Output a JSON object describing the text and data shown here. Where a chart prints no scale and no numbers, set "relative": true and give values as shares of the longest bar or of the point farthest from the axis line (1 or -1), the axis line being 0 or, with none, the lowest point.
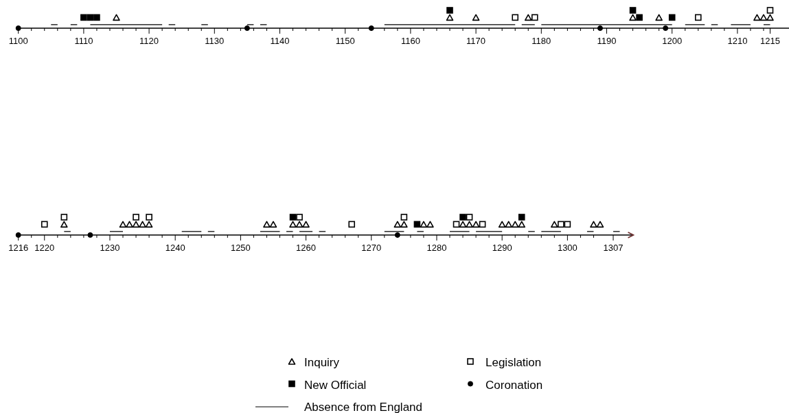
{
  "chart_data": [
    {
      "type": "scatter",
      "relative": true,
      "tick_labels": "x",
      "xlim": [
        1100,
        1218
      ],
      "xticks": [
        1100,
        {
          "value": 1102,
          "label": null
        },
        {
          "value": 1104,
          "label": null
        },
        {
          "value": 1106,
          "label": null
        },
        {
          "value": 1108,
          "label": null
        },
        1110,
        {
          "value": 1112,
          "label": null
        },
        {
          "value": 1114,
          "label": null
        },
        {
          "value": 1116,
          "label": null
        },
        {
          "value": 1118,
          "label": null
        },
        1120,
        {
          "value": 1122,
          "label": null
        },
        {
          "value": 1124,
          "label": null
        },
        {
          "value": 1126,
          "label": null
        },
        {
          "value": 1128,
          "label": null
        },
        1130,
        {
          "value": 1132,
          "label": null
        },
        {
          "value": 1134,
          "label": null
        },
        {
          "value": 1136,
          "label": null
        },
        {
          "value": 1138,
          "label": null
        },
        1140,
        {
          "value": 1142,
          "label": null
        },
        {
          "value": 1144,
          "label": null
        },
        {
          "value": 1146,
          "label": null
        },
        {
          "value": 1148,
          "label": null
        },
        1150,
        {
          "value": 1152,
          "label": null
        },
        {
          "value": 1154,
          "label": null
        },
        {
          "value": 1156,
          "label": null
        },
        {
          "value": 1158,
          "label": null
        },
        1160,
        {
          "value": 1162,
          "label": null
        },
        {
          "value": 1164,
          "label": null
        },
        {
          "value": 1166,
          "label": null
        },
        {
          "value": 1168,
          "label": null
        },
        1170,
        {
          "value": 1172,
          "label": null
        },
        {
          "value": 1174,
          "label": null
        },
        {
          "value": 1176,
          "label": null
        },
        {
          "value": 1178,
          "label": null
        },
        1180,
        {
          "value": 1182,
          "label": null
        },
        {
          "value": 1184,
          "label": null
        },
        {
          "value": 1186,
          "label": null
        },
        {
          "value": 1188,
          "label": null
        },
        1190,
        {
          "value": 1192,
          "label": null
        },
        {
          "value": 1194,
          "label": null
        },
        {
          "value": 1196,
          "label": null
        },
        {
          "value": 1198,
          "label": null
        },
        1200,
        {
          "value": 1202,
          "label": null
        },
        {
          "value": 1204,
          "label": null
        },
        {
          "value": 1206,
          "label": null
        },
        {
          "value": 1208,
          "label": null
        },
        1210,
        {
          "value": 1212,
          "label": null
        },
        {
          "value": 1214,
          "label": null
        },
        1215
      ],
      "series": [
        {
          "marker": "triangle",
          "color": "#000000",
          "x": [
            1115,
            1166,
            1170,
            1178,
            1194,
            1198,
            1213,
            1214,
            1215
          ],
          "values": [
            0.6,
            0.6,
            0.6,
            0.6,
            0.6,
            0.6,
            0.6,
            0.6,
            0.6
          ]
        },
        {
          "marker": "square",
          "color": "#000000",
          "x": [
            1176,
            1179,
            1204,
            1215
          ],
          "values": [
            0.6,
            0.6,
            0.6,
            1
          ]
        },
        {
          "marker": "square",
          "color": "#000000",
          "x": [
            1110,
            1111,
            1112,
            1166,
            1194,
            1195,
            1200
          ],
          "values": [
            0.6,
            0.6,
            0.6,
            1,
            1,
            0.6,
            0.6
          ]
        },
        {
          "marker": "circle",
          "color": "#000000",
          "x": [
            1100,
            1135,
            1154,
            1189,
            1199
          ],
          "values": [
            0,
            0,
            0,
            0,
            0
          ]
        },
        {
          "type": "line",
          "marker": "none",
          "color": "#000000",
          "x": [
            1105,
            1106,
            null,
            1108,
            1109,
            null,
            1111,
            1122,
            null,
            1123,
            1124,
            null,
            1128,
            1129,
            null,
            1135,
            1136,
            null,
            1137,
            1138,
            null,
            1156,
            1176,
            null,
            1177,
            1179,
            null,
            1180,
            1200,
            null,
            1202,
            1205,
            null,
            1206,
            1207,
            null,
            1209,
            1212,
            null,
            1214,
            1215
          ],
          "values": [
            0.2,
            0.2,
            null,
            0.2,
            0.2,
            null,
            0.2,
            0.2,
            null,
            0.2,
            0.2,
            null,
            0.2,
            0.2,
            null,
            0.2,
            0.2,
            null,
            0.2,
            0.2,
            null,
            0.2,
            0.2,
            null,
            0.2,
            0.2,
            null,
            0.2,
            0.2,
            null,
            0.2,
            0.2,
            null,
            0.2,
            0.2,
            null,
            0.2,
            0.2,
            null,
            0.2,
            0.2
          ]
        }
      ]
    },
    {
      "type": "scatter",
      "relative": true,
      "tick_labels": "x",
      "legend": "bottom",
      "xlim": [
        1216,
        1310
      ],
      "xticks": [
        1216,
        {
          "value": 1218,
          "label": null
        },
        1220,
        {
          "value": 1222,
          "label": null
        },
        {
          "value": 1224,
          "label": null
        },
        {
          "value": 1226,
          "label": null
        },
        {
          "value": 1228,
          "label": null
        },
        1230,
        {
          "value": 1232,
          "label": null
        },
        {
          "value": 1234,
          "label": null
        },
        {
          "value": 1236,
          "label": null
        },
        {
          "value": 1238,
          "label": null
        },
        1240,
        {
          "value": 1242,
          "label": null
        },
        {
          "value": 1244,
          "label": null
        },
        {
          "value": 1246,
          "label": null
        },
        {
          "value": 1248,
          "label": null
        },
        1250,
        {
          "value": 1252,
          "label": null
        },
        {
          "value": 1254,
          "label": null
        },
        {
          "value": 1256,
          "label": null
        },
        {
          "value": 1258,
          "label": null
        },
        1260,
        {
          "value": 1262,
          "label": null
        },
        {
          "value": 1264,
          "label": null
        },
        {
          "value": 1266,
          "label": null
        },
        {
          "value": 1268,
          "label": null
        },
        1270,
        {
          "value": 1272,
          "label": null
        },
        {
          "value": 1274,
          "label": null
        },
        {
          "value": 1276,
          "label": null
        },
        {
          "value": 1278,
          "label": null
        },
        1280,
        {
          "value": 1282,
          "label": null
        },
        {
          "value": 1284,
          "label": null
        },
        {
          "value": 1286,
          "label": null
        },
        {
          "value": 1288,
          "label": null
        },
        1290,
        {
          "value": 1292,
          "label": null
        },
        {
          "value": 1294,
          "label": null
        },
        {
          "value": 1296,
          "label": null
        },
        {
          "value": 1298,
          "label": null
        },
        1300,
        {
          "value": 1302,
          "label": null
        },
        {
          "value": 1304,
          "label": null
        },
        1307
      ],
      "series": [
        {
          "name": "Inquiry",
          "marker": "triangle",
          "color": "#000000",
          "x": [
            1223,
            1232,
            1233,
            1234,
            1235,
            1236,
            1254,
            1255,
            1258,
            1259,
            1260,
            1274,
            1275,
            1278,
            1279,
            1284,
            1285,
            1286,
            1290,
            1291,
            1292,
            1293,
            1298,
            1304,
            1305
          ],
          "values": [
            0.6,
            0.6,
            0.6,
            0.6,
            0.6,
            0.6,
            0.6,
            0.6,
            0.6,
            0.6,
            0.6,
            0.6,
            0.6,
            0.6,
            0.6,
            0.6,
            0.6,
            0.6,
            0.6,
            0.6,
            0.6,
            0.6,
            0.6,
            0.6,
            0.6
          ]
        },
        {
          "name": "Legislation",
          "marker": "square",
          "color": "#000000",
          "x": [
            1220,
            1223,
            1234,
            1236,
            1259,
            1267,
            1275,
            1283,
            1285,
            1287,
            1299,
            1300
          ],
          "values": [
            0.6,
            1,
            1,
            1,
            1,
            0.6,
            1,
            0.6,
            1,
            0.6,
            0.6,
            0.6
          ]
        },
        {
          "name": "New Official",
          "marker": "square",
          "color": "#000000",
          "x": [
            1258,
            1277,
            1284,
            1293
          ],
          "values": [
            1,
            0.6,
            1,
            1
          ]
        },
        {
          "name": "Coronation",
          "marker": "circle",
          "color": "#000000",
          "x": [
            1216,
            1227,
            1274
          ],
          "values": [
            0,
            0,
            0
          ]
        },
        {
          "name": "Absence from England",
          "type": "line",
          "marker": "none",
          "color": "#000000",
          "x": [
            1223,
            1224,
            null,
            1230,
            1232,
            null,
            1241,
            1244,
            null,
            1245,
            1246,
            null,
            1253,
            1256,
            null,
            1257,
            1258,
            null,
            1259,
            1261,
            null,
            1262,
            1263,
            null,
            1272,
            1275,
            null,
            1277,
            1278,
            null,
            1282,
            1285,
            null,
            1286,
            1290,
            null,
            1294,
            1295,
            null,
            1296,
            1299,
            null,
            1303,
            1304,
            null,
            1307,
            1308
          ],
          "values": [
            0.2,
            0.2,
            null,
            0.2,
            0.2,
            null,
            0.2,
            0.2,
            null,
            0.2,
            0.2,
            null,
            0.2,
            0.2,
            null,
            0.2,
            0.2,
            null,
            0.2,
            0.2,
            null,
            0.2,
            0.2,
            null,
            0.2,
            0.2,
            null,
            0.2,
            0.2,
            null,
            0.2,
            0.2,
            null,
            0.2,
            0.2,
            null,
            0.2,
            0.2,
            null,
            0.2,
            0.2,
            null,
            0.2,
            0.2,
            null,
            0.2,
            0.2
          ]
        }
      ]
    }
  ]
}
